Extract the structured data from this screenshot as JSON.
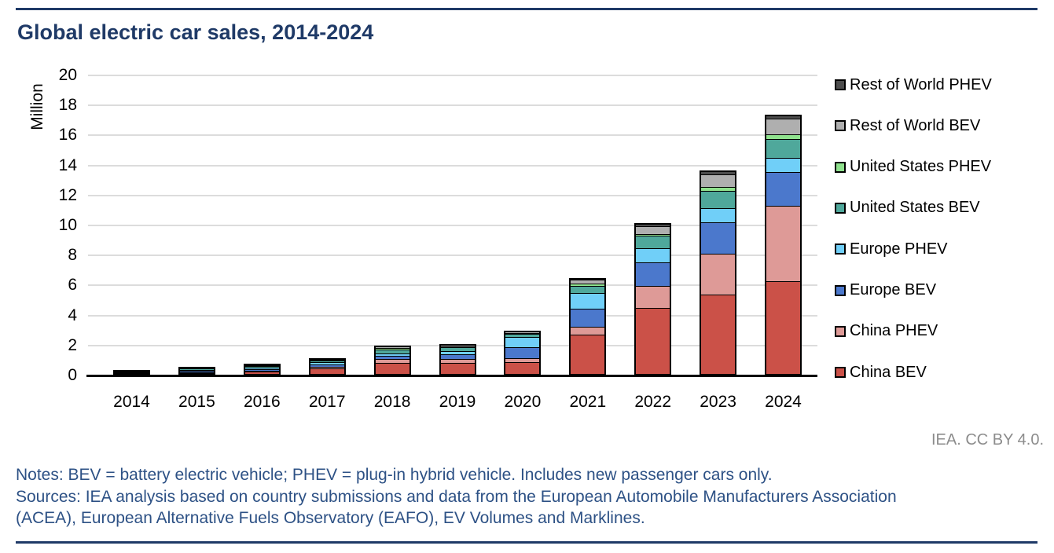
{
  "header": {
    "title": "Global electric car sales, 2014-2024"
  },
  "attribution": "IEA. CC BY 4.0.",
  "notes": {
    "line1": "Notes: BEV = battery electric vehicle; PHEV = plug-in hybrid vehicle. Includes new passenger cars only.",
    "line2": "Sources: IEA analysis based on country submissions and data from the European Automobile Manufacturers Association",
    "line3": "(ACEA), European Alternative Fuels Observatory (EAFO), EV Volumes and Marklines."
  },
  "colors": {
    "accent_navy": "#1F3A67",
    "notes_blue": "#2D5185",
    "grid_gray": "#DCDCDC",
    "attribution_gray": "#8C8C8C",
    "bar_border": "#000000"
  },
  "chart_data": {
    "type": "bar",
    "stacked": true,
    "title": "Global electric car sales, 2014-2024",
    "xlabel": "",
    "ylabel": "Million",
    "ylim": [
      0,
      20
    ],
    "ytick_interval": 2,
    "ytick_labels": [
      "0",
      "2",
      "4",
      "6",
      "8",
      "10",
      "12",
      "14",
      "16",
      "18",
      "20"
    ],
    "grid": true,
    "legend_position": "right",
    "categories": [
      "2014",
      "2015",
      "2016",
      "2017",
      "2018",
      "2019",
      "2020",
      "2021",
      "2022",
      "2023",
      "2024"
    ],
    "series": [
      {
        "name": "China BEV",
        "color": "#CB5148",
        "values": [
          0.05,
          0.15,
          0.26,
          0.47,
          0.82,
          0.85,
          0.9,
          2.7,
          4.5,
          5.4,
          6.3
        ]
      },
      {
        "name": "China PHEV",
        "color": "#DE9A97",
        "values": [
          0.02,
          0.06,
          0.08,
          0.11,
          0.27,
          0.23,
          0.25,
          0.55,
          1.45,
          2.7,
          5.0
        ]
      },
      {
        "name": "Europe BEV",
        "color": "#4B78CC",
        "values": [
          0.06,
          0.1,
          0.1,
          0.15,
          0.2,
          0.36,
          0.75,
          1.2,
          1.6,
          2.1,
          2.25
        ]
      },
      {
        "name": "Europe PHEV",
        "color": "#70CFF8",
        "values": [
          0.04,
          0.08,
          0.1,
          0.14,
          0.18,
          0.2,
          0.65,
          1.05,
          0.95,
          0.95,
          0.95
        ]
      },
      {
        "name": "United States BEV",
        "color": "#4FA89B",
        "values": [
          0.06,
          0.07,
          0.1,
          0.1,
          0.24,
          0.24,
          0.23,
          0.45,
          0.8,
          1.15,
          1.25
        ]
      },
      {
        "name": "United States PHEV",
        "color": "#8FE18D",
        "values": [
          0.05,
          0.04,
          0.06,
          0.09,
          0.12,
          0.08,
          0.07,
          0.17,
          0.15,
          0.25,
          0.35
        ]
      },
      {
        "name": "Rest of World BEV",
        "color": "#AFAFAF",
        "values": [
          0.02,
          0.03,
          0.04,
          0.06,
          0.12,
          0.1,
          0.1,
          0.25,
          0.5,
          0.85,
          1.0
        ]
      },
      {
        "name": "Rest of World PHEV",
        "color": "#4D4D4D",
        "values": [
          0.01,
          0.02,
          0.02,
          0.03,
          0.05,
          0.05,
          0.05,
          0.1,
          0.2,
          0.25,
          0.3
        ]
      }
    ],
    "legend_top_to_bottom": [
      "Rest of World PHEV",
      "Rest of World BEV",
      "United States PHEV",
      "United States BEV",
      "Europe PHEV",
      "Europe BEV",
      "China PHEV",
      "China BEV"
    ]
  }
}
